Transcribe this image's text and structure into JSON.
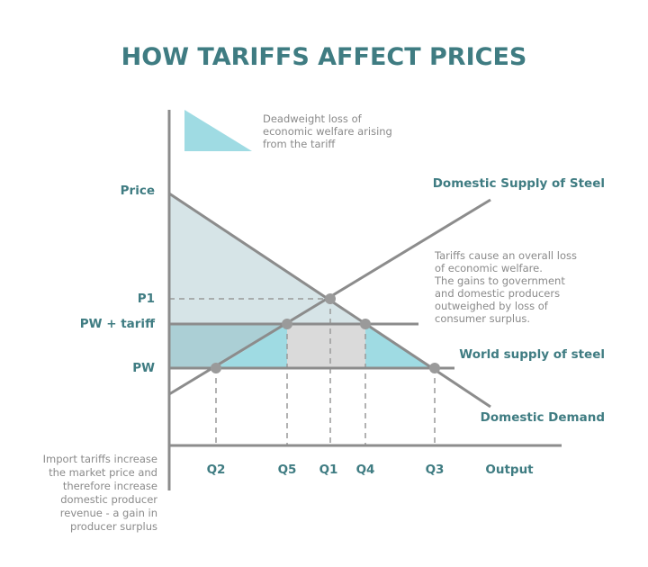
{
  "title": "HOW TARIFFS AFFECT PRICES",
  "legend": {
    "text": [
      "Deadweight loss of",
      "economic welfare arising",
      "from the tariff"
    ]
  },
  "y_labels": {
    "price": "Price",
    "p1": "P1",
    "pw_tariff": "PW + tariff",
    "pw": "PW"
  },
  "x_labels": {
    "q2": "Q2",
    "q5": "Q5",
    "q1": "Q1",
    "q4": "Q4",
    "q3": "Q3",
    "output": "Output"
  },
  "curves": {
    "supply": "Domestic Supply of Steel",
    "world": "World supply of steel",
    "demand": "Domestic Demand"
  },
  "note_right": [
    "Tariffs cause an overall loss",
    "of economic welfare.",
    "The gains to government",
    "and domestic producers",
    "outweighed by loss of",
    "consumer surplus."
  ],
  "note_left": [
    "Import tariffs increase",
    "the market price and",
    "therefore increase",
    "domestic producer",
    "revenue - a gain in",
    "producer surplus"
  ],
  "colors": {
    "accent": "#3f7c82",
    "deadweight": "#9fdbe3",
    "consumer_surplus": "#d6e4e7",
    "producer_band": "#abcfd5",
    "tariff_revenue": "#dadada"
  }
}
